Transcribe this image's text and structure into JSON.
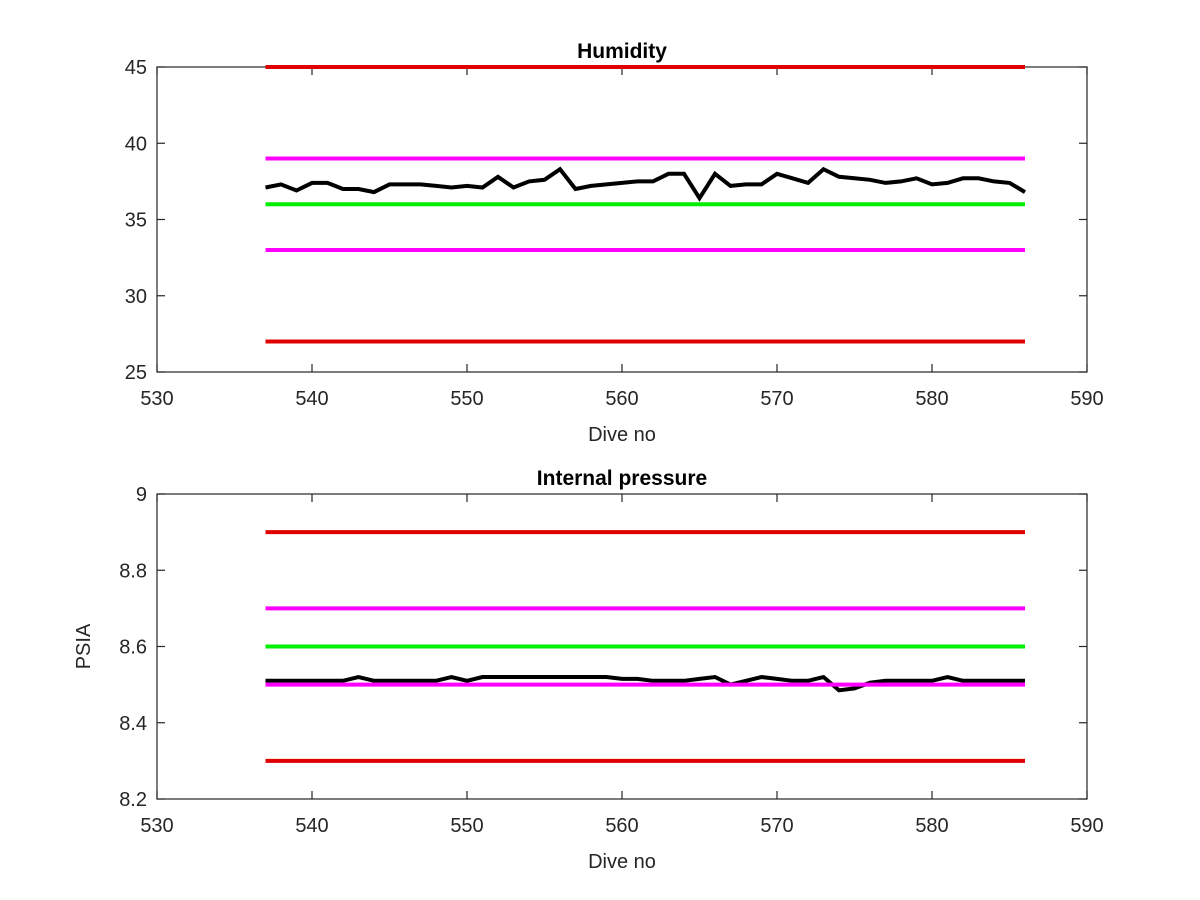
{
  "chart_data": [
    {
      "type": "line",
      "title": "Humidity",
      "xlabel": "Dive no",
      "ylabel": "",
      "xlim": [
        530,
        590
      ],
      "ylim": [
        25,
        45
      ],
      "xticks": [
        530,
        540,
        550,
        560,
        570,
        580,
        590
      ],
      "yticks": [
        25,
        30,
        35,
        40,
        45
      ],
      "xtick_labels": [
        "530",
        "540",
        "550",
        "560",
        "570",
        "580",
        "590"
      ],
      "ytick_labels": [
        "25",
        "30",
        "35",
        "40",
        "45"
      ],
      "grid": false,
      "series": [
        {
          "color": "#e00000",
          "line_width": 4,
          "x": [
            537,
            586
          ],
          "y": [
            45,
            45
          ]
        },
        {
          "color": "#e00000",
          "line_width": 4,
          "x": [
            537,
            586
          ],
          "y": [
            27,
            27
          ]
        },
        {
          "color": "#ff00ff",
          "line_width": 4,
          "x": [
            537,
            586
          ],
          "y": [
            39,
            39
          ]
        },
        {
          "color": "#ff00ff",
          "line_width": 4,
          "x": [
            537,
            586
          ],
          "y": [
            33,
            33
          ]
        },
        {
          "color": "#00ee00",
          "line_width": 4,
          "x": [
            537,
            586
          ],
          "y": [
            36,
            36
          ]
        },
        {
          "color": "#000000",
          "line_width": 4,
          "x": [
            537,
            538,
            539,
            540,
            541,
            542,
            543,
            544,
            545,
            546,
            547,
            548,
            549,
            550,
            551,
            552,
            553,
            554,
            555,
            556,
            557,
            558,
            559,
            560,
            561,
            562,
            563,
            564,
            565,
            566,
            567,
            568,
            569,
            570,
            571,
            572,
            573,
            574,
            575,
            576,
            577,
            578,
            579,
            580,
            581,
            582,
            583,
            584,
            585,
            586
          ],
          "y": [
            37.1,
            37.3,
            36.9,
            37.4,
            37.4,
            37.0,
            37.0,
            36.8,
            37.3,
            37.3,
            37.3,
            37.2,
            37.1,
            37.2,
            37.1,
            37.8,
            37.1,
            37.5,
            37.6,
            38.3,
            37.0,
            37.2,
            37.3,
            37.4,
            37.5,
            37.5,
            38.0,
            38.0,
            36.4,
            38.0,
            37.2,
            37.3,
            37.3,
            38.0,
            37.7,
            37.4,
            38.3,
            37.8,
            37.7,
            37.6,
            37.4,
            37.5,
            37.7,
            37.3,
            37.4,
            37.7,
            37.7,
            37.5,
            37.4,
            36.8
          ]
        }
      ]
    },
    {
      "type": "line",
      "title": "Internal pressure",
      "xlabel": "Dive no",
      "ylabel": "PSIA",
      "xlim": [
        530,
        590
      ],
      "ylim": [
        8.2,
        9
      ],
      "xticks": [
        530,
        540,
        550,
        560,
        570,
        580,
        590
      ],
      "yticks": [
        8.2,
        8.4,
        8.6,
        8.8,
        9
      ],
      "xtick_labels": [
        "530",
        "540",
        "550",
        "560",
        "570",
        "580",
        "590"
      ],
      "ytick_labels": [
        "8.2",
        "8.4",
        "8.6",
        "8.8",
        "9"
      ],
      "grid": false,
      "series": [
        {
          "color": "#e00000",
          "line_width": 4,
          "x": [
            537,
            586
          ],
          "y": [
            8.9,
            8.9
          ]
        },
        {
          "color": "#e00000",
          "line_width": 4,
          "x": [
            537,
            586
          ],
          "y": [
            8.3,
            8.3
          ]
        },
        {
          "color": "#ff00ff",
          "line_width": 4,
          "x": [
            537,
            586
          ],
          "y": [
            8.7,
            8.7
          ]
        },
        {
          "color": "#00ee00",
          "line_width": 4,
          "x": [
            537,
            586
          ],
          "y": [
            8.6,
            8.6
          ]
        },
        {
          "color": "#000000",
          "line_width": 4,
          "x": [
            537,
            538,
            539,
            540,
            541,
            542,
            543,
            544,
            545,
            546,
            547,
            548,
            549,
            550,
            551,
            552,
            553,
            554,
            555,
            556,
            557,
            558,
            559,
            560,
            561,
            562,
            563,
            564,
            565,
            566,
            567,
            568,
            569,
            570,
            571,
            572,
            573,
            574,
            575,
            576,
            577,
            578,
            579,
            580,
            581,
            582,
            583,
            584,
            585,
            586
          ],
          "y": [
            8.51,
            8.51,
            8.51,
            8.51,
            8.51,
            8.51,
            8.52,
            8.51,
            8.51,
            8.51,
            8.51,
            8.51,
            8.52,
            8.51,
            8.52,
            8.52,
            8.52,
            8.52,
            8.52,
            8.52,
            8.52,
            8.52,
            8.52,
            8.515,
            8.515,
            8.51,
            8.51,
            8.51,
            8.515,
            8.52,
            8.5,
            8.51,
            8.52,
            8.515,
            8.51,
            8.51,
            8.52,
            8.485,
            8.49,
            8.505,
            8.51,
            8.51,
            8.51,
            8.51,
            8.52,
            8.51,
            8.51,
            8.51,
            8.51,
            8.51
          ]
        },
        {
          "color": "#ff00ff",
          "line_width": 4,
          "x": [
            537,
            586
          ],
          "y": [
            8.5,
            8.5
          ]
        }
      ]
    }
  ]
}
